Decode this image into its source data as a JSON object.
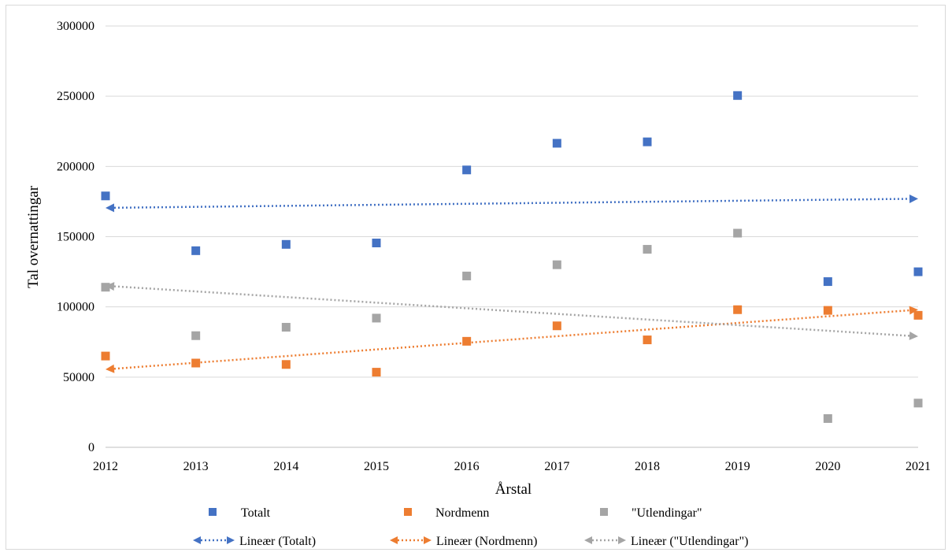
{
  "chart_data": {
    "type": "scatter",
    "title": "",
    "xlabel": "Årstal",
    "ylabel": "Tal overnattingar",
    "x": [
      2012,
      2013,
      2014,
      2015,
      2016,
      2017,
      2018,
      2019,
      2020,
      2021
    ],
    "xlim": [
      2012,
      2021
    ],
    "ylim": [
      0,
      300000
    ],
    "yticks": [
      "0",
      "50000",
      "100000",
      "150000",
      "200000",
      "250000",
      "300000"
    ],
    "xticks": [
      "2012",
      "2013",
      "2014",
      "2015",
      "2016",
      "2017",
      "2018",
      "2019",
      "2020",
      "2021"
    ],
    "grid": true,
    "legend_position": "bottom",
    "series": [
      {
        "name": "Totalt",
        "color": "#4472c4",
        "values": [
          179000,
          140000,
          144500,
          145500,
          197500,
          216500,
          217500,
          250500,
          118000,
          125000
        ]
      },
      {
        "name": "Nordmenn",
        "color": "#ed7d31",
        "values": [
          65000,
          60000,
          59000,
          53500,
          75500,
          86500,
          76500,
          98000,
          97500,
          94000
        ]
      },
      {
        "name": "\"Utlendingar\"",
        "color": "#a5a5a5",
        "values": [
          114000,
          79500,
          85500,
          92000,
          122000,
          130000,
          141000,
          152500,
          20500,
          31500
        ]
      }
    ],
    "trendlines": [
      {
        "name": "Lineær (Totalt)",
        "color": "#4472c4",
        "type": "linear",
        "start": [
          2012,
          170500
        ],
        "end": [
          2021,
          177000
        ]
      },
      {
        "name": "Lineær (Nordmenn)",
        "color": "#ed7d31",
        "type": "linear",
        "start": [
          2012,
          55500
        ],
        "end": [
          2021,
          98000
        ]
      },
      {
        "name": "Lineær (\"Utlendingar\")",
        "color": "#a5a5a5",
        "type": "linear",
        "start": [
          2012,
          115000
        ],
        "end": [
          2021,
          79000
        ]
      }
    ]
  }
}
